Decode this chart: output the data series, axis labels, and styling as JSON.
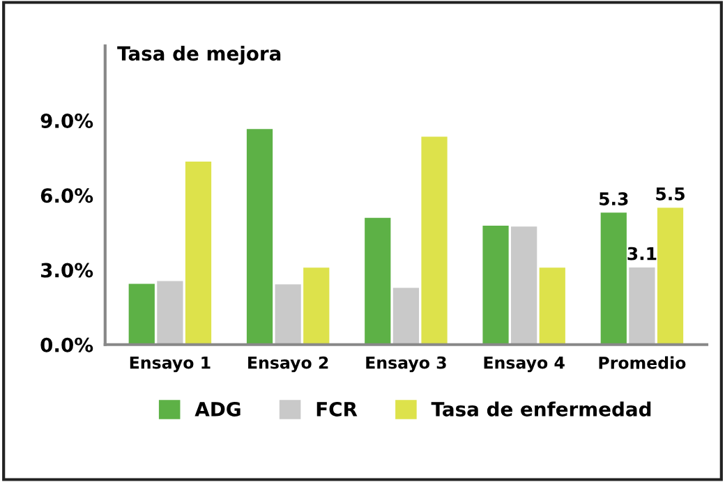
{
  "chart_data": {
    "type": "bar",
    "ylabel": "Tasa de mejora",
    "categories": [
      "Ensayo 1",
      "Ensayo 2",
      "Ensayo 3",
      "Ensayo 4",
      "Promedio"
    ],
    "series": [
      {
        "name": "ADG",
        "color": "#5db146",
        "values": [
          2.44,
          8.66,
          5.09,
          4.78,
          5.3
        ],
        "value_labels": [
          null,
          null,
          null,
          null,
          "5.3"
        ]
      },
      {
        "name": "FCR",
        "color": "#c9c9c9",
        "values": [
          2.55,
          2.42,
          2.28,
          4.74,
          3.1
        ],
        "value_labels": [
          null,
          null,
          null,
          null,
          "3.1"
        ]
      },
      {
        "name": "Tasa de enfermedad",
        "color": "#dde24b",
        "values": [
          7.35,
          3.09,
          8.35,
          3.09,
          5.5
        ],
        "value_labels": [
          null,
          null,
          null,
          null,
          "5.5"
        ]
      }
    ],
    "ylim": [
      0,
      12
    ],
    "yticks": [
      {
        "value": 0,
        "label": "0.0%"
      },
      {
        "value": 3,
        "label": "3.0%"
      },
      {
        "value": 6,
        "label": "6.0%"
      },
      {
        "value": 9,
        "label": "9.0%"
      }
    ],
    "grid": false,
    "legend": "bottom"
  }
}
